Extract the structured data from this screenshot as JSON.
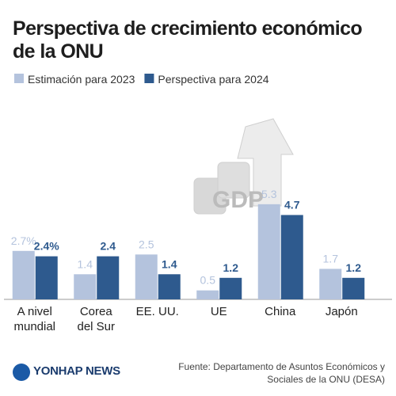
{
  "chart_data": {
    "type": "bar",
    "title": "Perspectiva de crecimiento económico\nde la ONU",
    "categories": [
      "A nivel\nmundial",
      "Corea\ndel Sur",
      "EE. UU.",
      "UE",
      "China",
      "Japón"
    ],
    "series": [
      {
        "name": "Estimación para 2023",
        "color": "#b4c3dd",
        "values": [
          2.7,
          1.4,
          2.5,
          0.5,
          5.3,
          1.7
        ],
        "value_labels": [
          "2.7%",
          "1.4",
          "2.5",
          "0.5",
          "5.3",
          "1.7"
        ]
      },
      {
        "name": "Perspectiva para 2024",
        "color": "#2e5a8e",
        "values": [
          2.4,
          2.4,
          1.4,
          1.2,
          4.7,
          1.2
        ],
        "value_labels": [
          "2.4%",
          "2.4",
          "1.4",
          "1.2",
          "4.7",
          "1.2"
        ]
      }
    ],
    "ylim": [
      0,
      6
    ],
    "source": "Fuente: Departamento de Asuntos Económicos y\nSociales de la ONU (DESA)",
    "logo": "YONHAP NEWS"
  }
}
